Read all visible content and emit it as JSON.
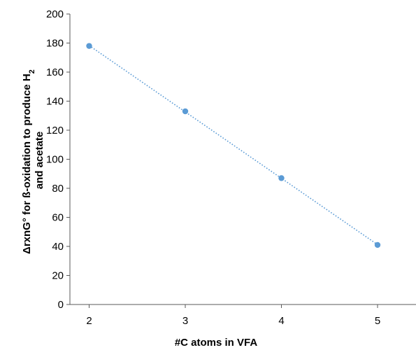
{
  "chart_data": {
    "type": "scatter",
    "title": "",
    "xlabel": "#C atoms in VFA",
    "ylabel": {
      "line1_prefix": "ΔrxnG° for ß-oxidation to produce H",
      "line1_subscript": "2",
      "line2": "and acetate"
    },
    "xlim": [
      1.8,
      5.4
    ],
    "ylim": [
      0,
      200
    ],
    "xticks": [
      2,
      3,
      4,
      5
    ],
    "yticks": [
      0,
      20,
      40,
      60,
      80,
      100,
      120,
      140,
      160,
      180,
      200
    ],
    "grid": false,
    "legend": "none",
    "series": [
      {
        "x": [
          2,
          3,
          4,
          5
        ],
        "y": [
          178,
          133,
          87,
          41
        ],
        "marker_color": "#5B9BD5",
        "trendline": "linear",
        "trendline_style": "dotted"
      }
    ]
  }
}
